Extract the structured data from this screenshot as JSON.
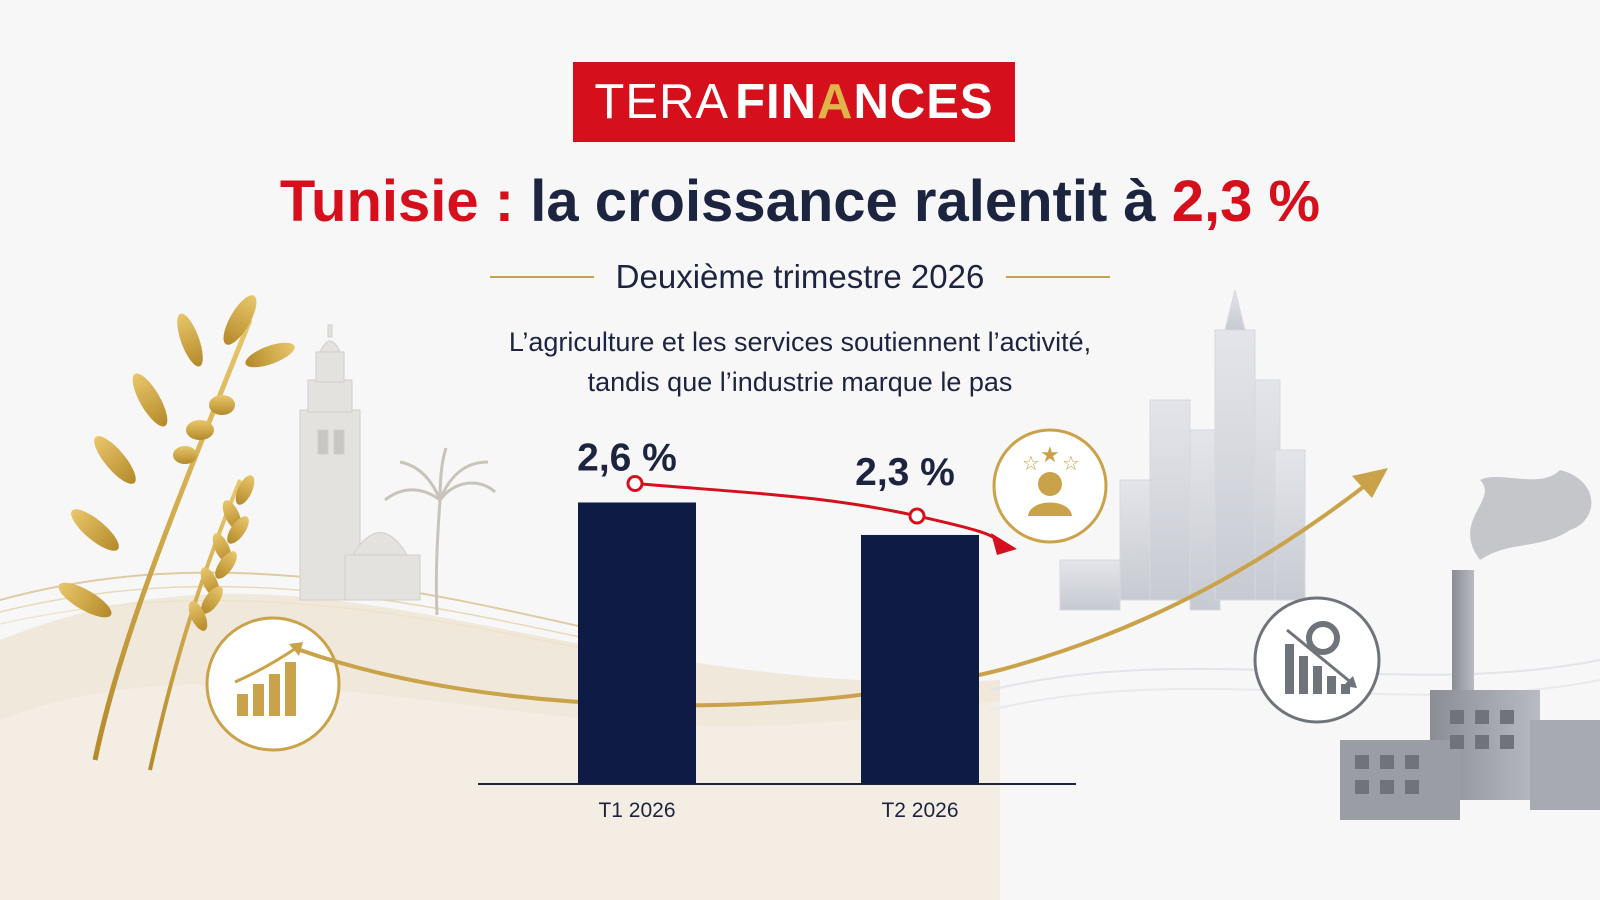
{
  "brand": {
    "name_light": "TERA",
    "name_bold_start": "FIN",
    "name_bold_mark": "A",
    "name_bold_end": "NCES"
  },
  "headline": {
    "lead": "Tunisie : ",
    "main": "la croissance ralentit à ",
    "figure": "2,3 %"
  },
  "subtitle": "Deuxième trimestre 2026",
  "tagline": {
    "line1": "L’agriculture et les services soutiennent l’activité,",
    "line2": "tandis que l’industrie marque le pas"
  },
  "icons": [
    "growth-chart-icon",
    "star-person-icon",
    "gear-decline-chart-icon"
  ],
  "colors": {
    "accent_red": "#d5101c",
    "bar_navy": "#0e1b45",
    "gold": "#c9a24a",
    "text_dark": "#1c2440"
  },
  "chart_data": {
    "type": "bar",
    "categories": [
      "T1 2026",
      "T2 2026"
    ],
    "values": [
      2.6,
      2.3
    ],
    "value_labels": [
      "2,6 %",
      "2,3 %"
    ],
    "unit": "%",
    "ylim": [
      0,
      2.9
    ],
    "trend": "down",
    "grid": false,
    "legend": "none"
  }
}
